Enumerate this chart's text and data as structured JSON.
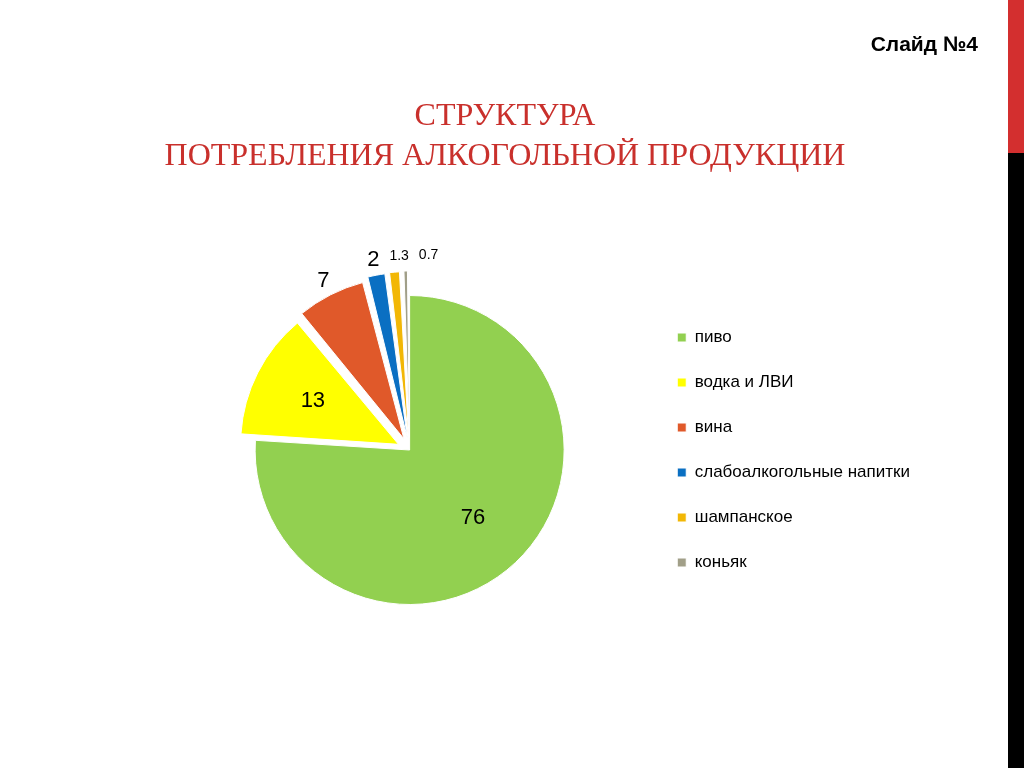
{
  "chart_data": {
    "type": "pie",
    "title": "СТРУКТУРА\nПОТРЕБЛЕНИЯ АЛКОГОЛЬНОЙ ПРОДУКЦИИ",
    "categories": [
      "пиво",
      "водка и ЛВИ",
      "вина",
      "слабоалкогольные напитки",
      "шампанское",
      "коньяк"
    ],
    "values": [
      76,
      13,
      7,
      2,
      1.3,
      0.7
    ],
    "colors": [
      "#92d050",
      "#ffff00",
      "#e0592a",
      "#0a6fc2",
      "#f2b705",
      "#a19f88"
    ],
    "data_labels": true,
    "legend": "right",
    "annotations": [
      "Слайд №4"
    ]
  }
}
